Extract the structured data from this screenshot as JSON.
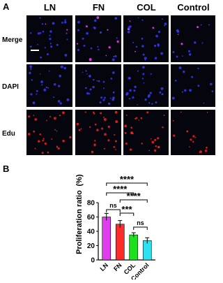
{
  "panel_a": {
    "label": "A",
    "columns": [
      "LN",
      "FN",
      "COL",
      "Control"
    ],
    "rows": [
      "Merge",
      "DAPI",
      "Edu"
    ]
  },
  "panel_b": {
    "label": "B"
  },
  "chart_data": {
    "type": "bar",
    "ylabel": "Proliferation ratio",
    "ylabel_unit": "(%)",
    "categories": [
      "LN",
      "FN",
      "COL",
      "Control"
    ],
    "values": [
      60,
      50,
      35,
      27
    ],
    "errors": [
      5,
      5,
      3,
      4
    ],
    "colors": [
      "#e23cf0",
      "#ff2a2a",
      "#1fe01f",
      "#2fe0ee"
    ],
    "ylim": [
      0,
      80
    ],
    "yticks": [
      0,
      20,
      40,
      60,
      80
    ],
    "annotations": [
      "****",
      "****",
      "****",
      "ns",
      "***",
      "ns"
    ]
  }
}
